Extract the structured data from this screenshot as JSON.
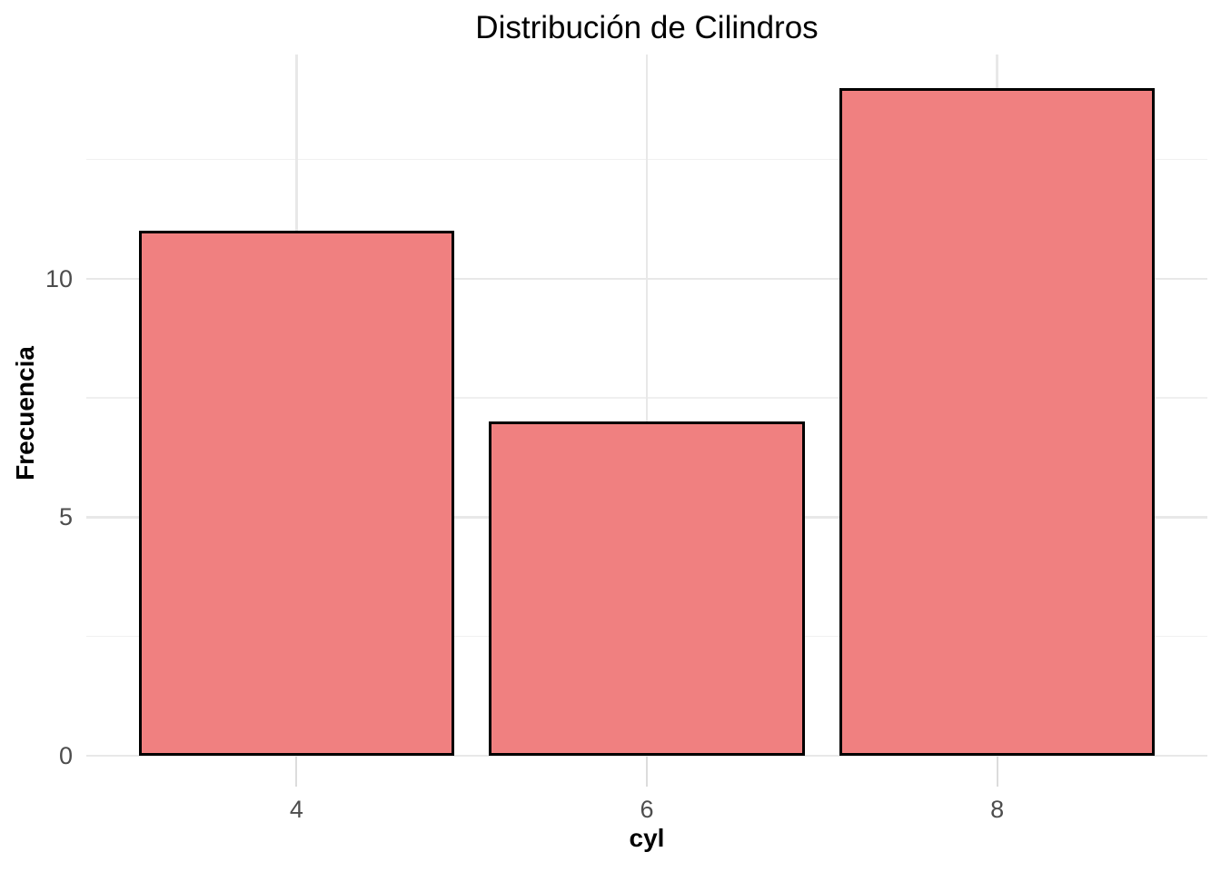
{
  "chart_data": {
    "type": "bar",
    "title": "Distribución de Cilindros",
    "xlabel": "cyl",
    "ylabel": "Frecuencia",
    "categories": [
      "4",
      "6",
      "8"
    ],
    "values": [
      11,
      7,
      14
    ],
    "ylim": [
      0,
      14.7
    ],
    "y_major_ticks": [
      0,
      5,
      10
    ],
    "y_minor_ticks": [
      2.5,
      7.5,
      12.5
    ],
    "bar_width_fraction": 0.9,
    "grid": "horizontal major+minor, vertical major at category centers",
    "legend": "none",
    "colors": {
      "background": "#FFFFFF",
      "bar_fill": "#F08080",
      "bar_stroke": "#000000",
      "grid_major": "#E8E8E8",
      "grid_minor": "#F0F0F0",
      "axis_tick": "#DCDCDC",
      "tick_label": "#4D4D4D",
      "axis_title": "#000000",
      "title": "#000000"
    }
  }
}
